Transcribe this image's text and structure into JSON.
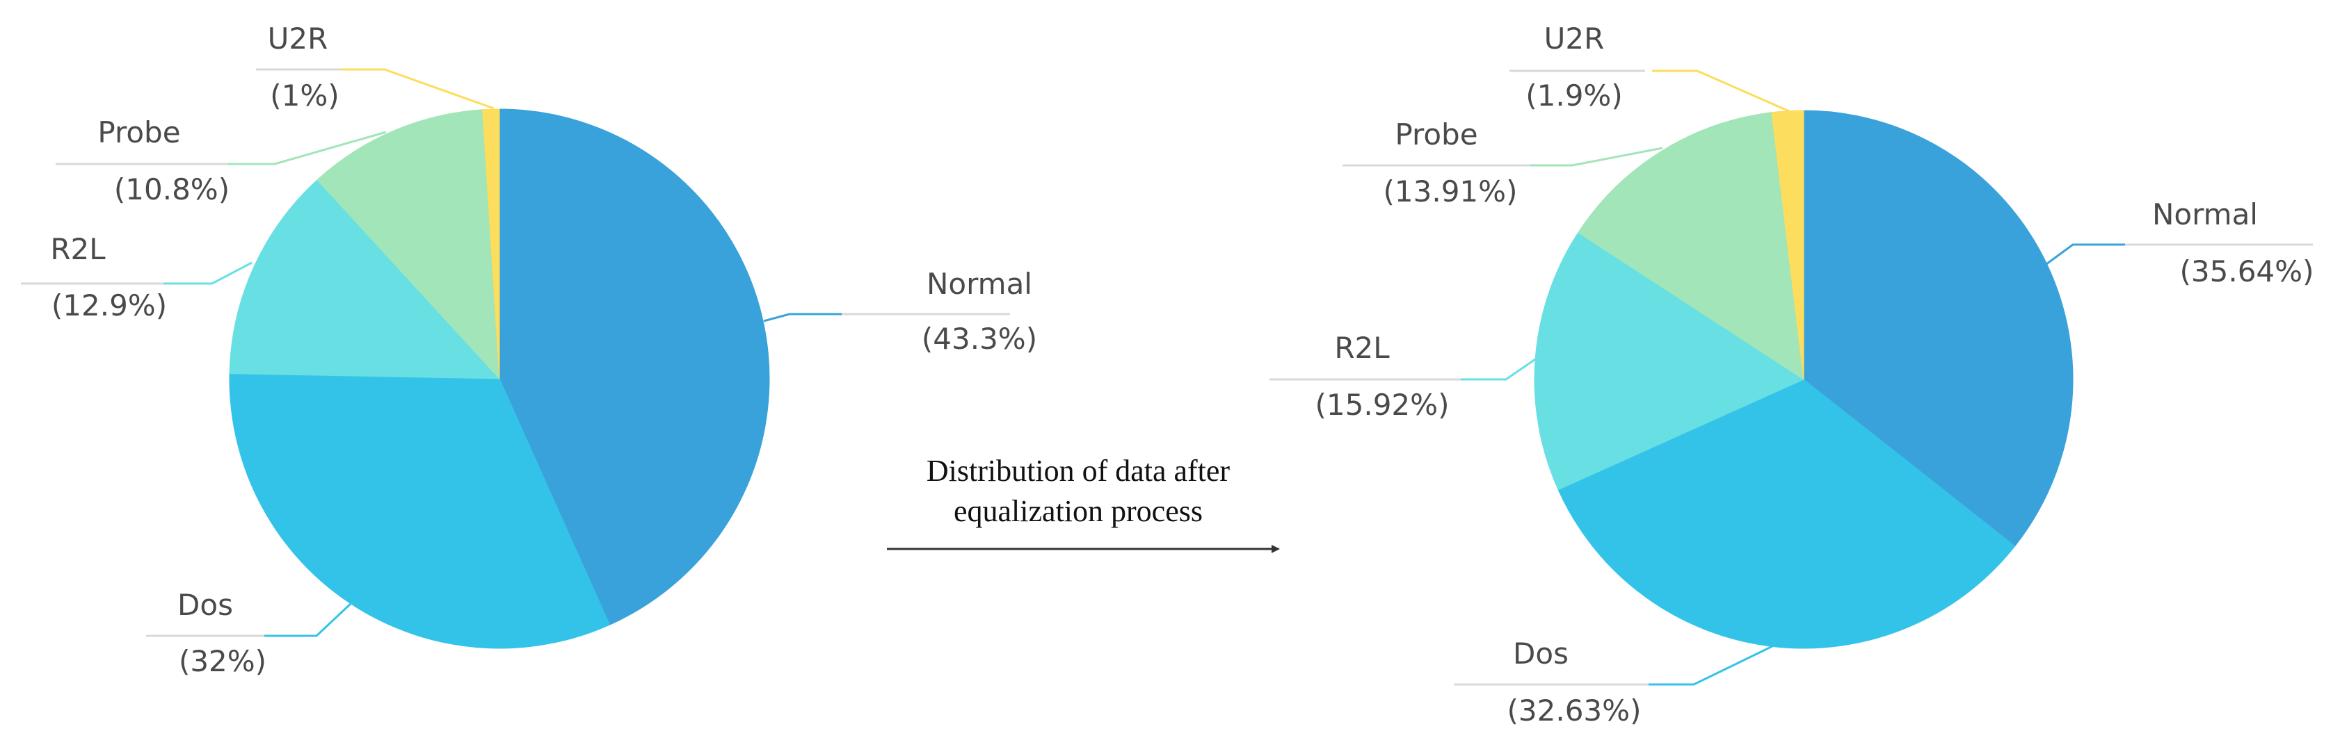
{
  "chart_data": [
    {
      "type": "pie",
      "slices": [
        {
          "label": "Normal",
          "pct_text": "(43.3%)",
          "value": 43.3,
          "color": "#3aa2db"
        },
        {
          "label": "Dos",
          "pct_text": "(32%)",
          "value": 32.0,
          "color": "#34c3e8"
        },
        {
          "label": "R2L",
          "pct_text": "(12.9%)",
          "value": 12.9,
          "color": "#68e0e3"
        },
        {
          "label": "Probe",
          "pct_text": "(10.8%)",
          "value": 10.8,
          "color": "#a2e5b8"
        },
        {
          "label": "U2R",
          "pct_text": "(1%)",
          "value": 1.0,
          "color": "#fcdd5d"
        }
      ],
      "legend": "none"
    },
    {
      "type": "pie",
      "slices": [
        {
          "label": "Normal",
          "pct_text": "(35.64%)",
          "value": 35.64,
          "color": "#3aa2db"
        },
        {
          "label": "Dos",
          "pct_text": "(32.63%)",
          "value": 32.63,
          "color": "#34c3e8"
        },
        {
          "label": "R2L",
          "pct_text": "(15.92%)",
          "value": 15.92,
          "color": "#68e0e3"
        },
        {
          "label": "Probe",
          "pct_text": "(13.91%)",
          "value": 13.91,
          "color": "#a2e5b8"
        },
        {
          "label": "U2R",
          "pct_text": "(1.9%)",
          "value": 1.9,
          "color": "#fcdd5d"
        }
      ],
      "legend": "none"
    }
  ],
  "caption": {
    "line1": "Distribution of data after",
    "line2": "equalization process"
  }
}
